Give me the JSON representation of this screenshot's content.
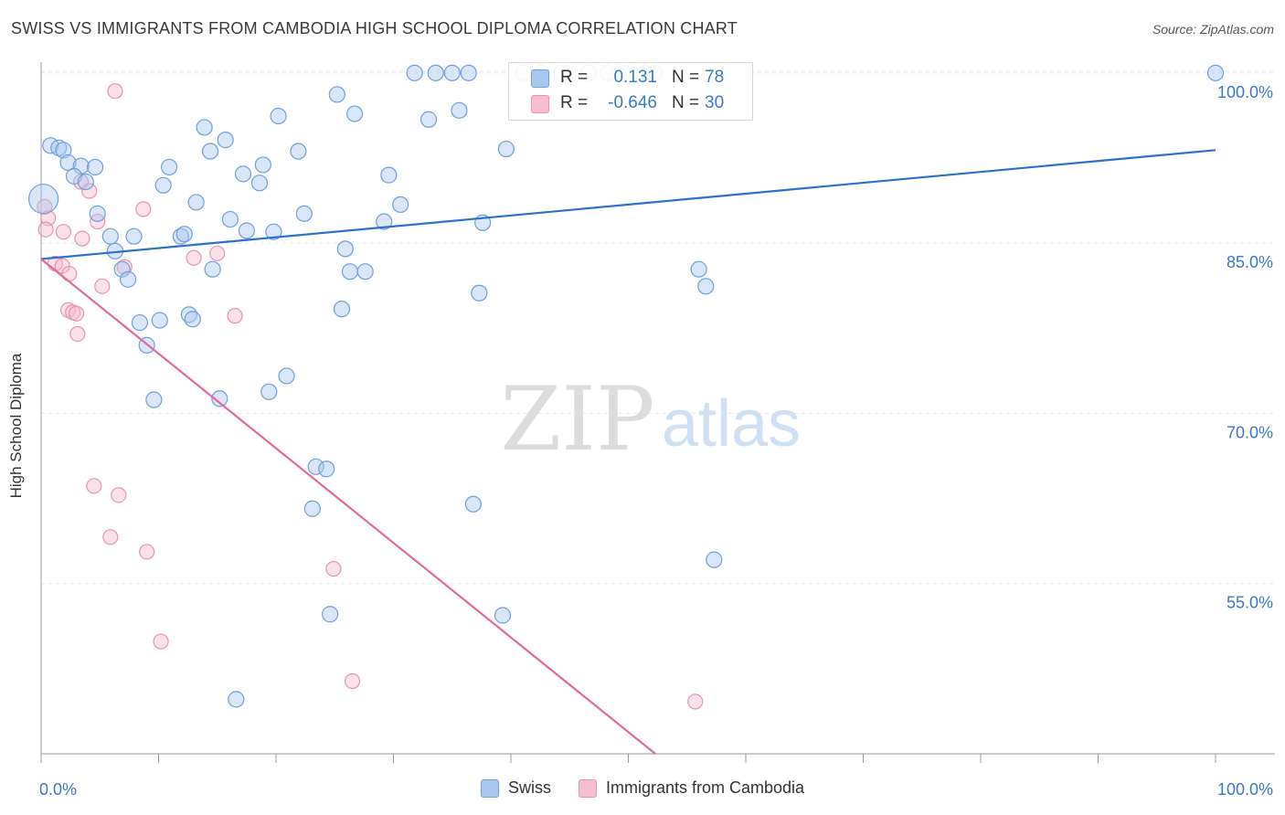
{
  "title": "SWISS VS IMMIGRANTS FROM CAMBODIA HIGH SCHOOL DIPLOMA CORRELATION CHART",
  "source": "Source: ZipAtlas.com",
  "watermark": {
    "zip": "ZIP",
    "atlas": "atlas"
  },
  "colors": {
    "swiss_fill": "#a8c8f0",
    "swiss_stroke": "#6f9fd8",
    "swiss_line": "#2d6fcc",
    "camb_fill": "#f6bcd0",
    "camb_stroke": "#e892b0",
    "camb_line": "#e06a98",
    "value_text": "#3a78c9",
    "grid": "#e6e6e6"
  },
  "stats_legend": {
    "swiss": {
      "r_label": "R =",
      "r_value": "0.131",
      "n_label": "N =",
      "n_value": "78"
    },
    "cambodia": {
      "r_label": "R =",
      "r_value": "-0.646",
      "n_label": "N =",
      "n_value": "30"
    }
  },
  "legend": {
    "swiss": "Swiss",
    "cambodia": "Immigrants from Cambodia"
  },
  "chart_data": {
    "type": "scatter",
    "title": "SWISS VS IMMIGRANTS FROM CAMBODIA HIGH SCHOOL DIPLOMA CORRELATION CHART",
    "xlabel": "",
    "ylabel": "High School Diploma",
    "xlim": [
      0,
      100
    ],
    "ylim": [
      40,
      102
    ],
    "x_tick_labels": [
      {
        "value": 0,
        "label": "0.0%"
      },
      {
        "value": 100,
        "label": "100.0%"
      }
    ],
    "y_tick_labels": [
      {
        "value": 55,
        "label": "55.0%"
      },
      {
        "value": 70,
        "label": "70.0%"
      },
      {
        "value": 85,
        "label": "85.0%"
      },
      {
        "value": 100,
        "label": "100.0%"
      }
    ],
    "x_minor_ticks": [
      0,
      10,
      20,
      30,
      40,
      50,
      60,
      70,
      80,
      90,
      100
    ],
    "series": [
      {
        "name": "Swiss",
        "trend": {
          "x": [
            0,
            100
          ],
          "y": [
            83.6,
            93.2
          ]
        },
        "points": [
          {
            "x": 0.2,
            "y": 88.9,
            "big": true
          },
          {
            "x": 0.8,
            "y": 93.6
          },
          {
            "x": 1.5,
            "y": 93.4
          },
          {
            "x": 1.9,
            "y": 93.2
          },
          {
            "x": 2.3,
            "y": 92.1
          },
          {
            "x": 3.4,
            "y": 91.8
          },
          {
            "x": 4.6,
            "y": 91.7
          },
          {
            "x": 2.8,
            "y": 90.9
          },
          {
            "x": 3.8,
            "y": 90.4
          },
          {
            "x": 4.8,
            "y": 87.6
          },
          {
            "x": 5.9,
            "y": 85.6
          },
          {
            "x": 6.3,
            "y": 84.3
          },
          {
            "x": 7.9,
            "y": 85.6
          },
          {
            "x": 6.9,
            "y": 82.7
          },
          {
            "x": 7.4,
            "y": 81.8
          },
          {
            "x": 8.4,
            "y": 78.0
          },
          {
            "x": 9.0,
            "y": 76.0
          },
          {
            "x": 9.6,
            "y": 71.2
          },
          {
            "x": 10.1,
            "y": 78.2
          },
          {
            "x": 10.4,
            "y": 90.1
          },
          {
            "x": 10.9,
            "y": 91.7
          },
          {
            "x": 11.9,
            "y": 85.6
          },
          {
            "x": 12.2,
            "y": 85.8
          },
          {
            "x": 12.6,
            "y": 78.7
          },
          {
            "x": 12.9,
            "y": 78.3
          },
          {
            "x": 13.2,
            "y": 88.6
          },
          {
            "x": 13.9,
            "y": 95.2
          },
          {
            "x": 14.4,
            "y": 93.1
          },
          {
            "x": 14.6,
            "y": 82.7
          },
          {
            "x": 15.2,
            "y": 71.3
          },
          {
            "x": 15.7,
            "y": 94.1
          },
          {
            "x": 16.1,
            "y": 87.1
          },
          {
            "x": 16.6,
            "y": 44.8
          },
          {
            "x": 17.2,
            "y": 91.1
          },
          {
            "x": 17.5,
            "y": 86.1
          },
          {
            "x": 18.6,
            "y": 90.3
          },
          {
            "x": 18.9,
            "y": 91.9
          },
          {
            "x": 19.4,
            "y": 71.9
          },
          {
            "x": 19.8,
            "y": 86.0
          },
          {
            "x": 20.2,
            "y": 96.2
          },
          {
            "x": 20.9,
            "y": 73.3
          },
          {
            "x": 21.9,
            "y": 93.1
          },
          {
            "x": 22.4,
            "y": 87.6
          },
          {
            "x": 23.1,
            "y": 61.6
          },
          {
            "x": 23.4,
            "y": 65.3
          },
          {
            "x": 24.3,
            "y": 65.1
          },
          {
            "x": 24.6,
            "y": 52.3
          },
          {
            "x": 25.2,
            "y": 98.1
          },
          {
            "x": 25.6,
            "y": 79.2
          },
          {
            "x": 25.9,
            "y": 84.5
          },
          {
            "x": 26.3,
            "y": 82.5
          },
          {
            "x": 26.7,
            "y": 96.4
          },
          {
            "x": 27.6,
            "y": 82.5
          },
          {
            "x": 29.2,
            "y": 86.9
          },
          {
            "x": 29.6,
            "y": 91.0
          },
          {
            "x": 30.6,
            "y": 88.4
          },
          {
            "x": 31.8,
            "y": 100.0
          },
          {
            "x": 33.0,
            "y": 95.9
          },
          {
            "x": 33.6,
            "y": 100.0
          },
          {
            "x": 35.0,
            "y": 100.0
          },
          {
            "x": 35.6,
            "y": 96.7
          },
          {
            "x": 36.4,
            "y": 100.0
          },
          {
            "x": 36.8,
            "y": 62.0
          },
          {
            "x": 37.3,
            "y": 80.6
          },
          {
            "x": 37.6,
            "y": 86.8
          },
          {
            "x": 39.6,
            "y": 93.3
          },
          {
            "x": 39.3,
            "y": 52.2
          },
          {
            "x": 41.1,
            "y": 100.0
          },
          {
            "x": 42.6,
            "y": 100.0
          },
          {
            "x": 44.3,
            "y": 100.0
          },
          {
            "x": 46.6,
            "y": 100.0
          },
          {
            "x": 48.3,
            "y": 100.0
          },
          {
            "x": 49.6,
            "y": 100.0
          },
          {
            "x": 51.4,
            "y": 100.0
          },
          {
            "x": 52.2,
            "y": 100.0
          },
          {
            "x": 56.0,
            "y": 82.7
          },
          {
            "x": 56.6,
            "y": 81.2
          },
          {
            "x": 57.3,
            "y": 57.1
          },
          {
            "x": 100.0,
            "y": 100.0
          }
        ]
      },
      {
        "name": "Immigrants from Cambodia",
        "trend": {
          "x": [
            0,
            52.3
          ],
          "y": [
            83.6,
            40.0
          ]
        },
        "points": [
          {
            "x": 0.3,
            "y": 88.2
          },
          {
            "x": 0.6,
            "y": 87.2
          },
          {
            "x": 0.4,
            "y": 86.2
          },
          {
            "x": 1.2,
            "y": 83.2
          },
          {
            "x": 1.9,
            "y": 86.0
          },
          {
            "x": 1.8,
            "y": 83.0
          },
          {
            "x": 2.4,
            "y": 82.3
          },
          {
            "x": 2.3,
            "y": 79.1
          },
          {
            "x": 2.7,
            "y": 78.9
          },
          {
            "x": 3.0,
            "y": 78.8
          },
          {
            "x": 3.1,
            "y": 77.0
          },
          {
            "x": 3.4,
            "y": 90.4
          },
          {
            "x": 3.5,
            "y": 85.4
          },
          {
            "x": 4.1,
            "y": 89.6
          },
          {
            "x": 4.5,
            "y": 63.6
          },
          {
            "x": 4.8,
            "y": 86.9
          },
          {
            "x": 5.2,
            "y": 81.2
          },
          {
            "x": 5.9,
            "y": 59.1
          },
          {
            "x": 6.3,
            "y": 98.4
          },
          {
            "x": 6.6,
            "y": 62.8
          },
          {
            "x": 7.1,
            "y": 82.9
          },
          {
            "x": 8.7,
            "y": 88.0
          },
          {
            "x": 9.0,
            "y": 57.8
          },
          {
            "x": 10.2,
            "y": 49.9
          },
          {
            "x": 13.0,
            "y": 83.7
          },
          {
            "x": 15.0,
            "y": 84.1
          },
          {
            "x": 16.5,
            "y": 78.6
          },
          {
            "x": 24.9,
            "y": 56.3
          },
          {
            "x": 26.5,
            "y": 46.4
          },
          {
            "x": 55.7,
            "y": 44.6
          }
        ]
      }
    ]
  }
}
